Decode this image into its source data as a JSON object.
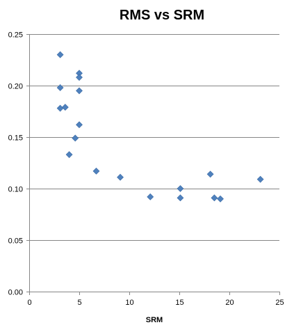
{
  "chart_data": {
    "type": "scatter",
    "title": "RMS vs SRM",
    "xlabel": "SRM",
    "ylabel": "",
    "xlim": [
      0,
      25
    ],
    "ylim": [
      0,
      0.25
    ],
    "xticks": [
      "0",
      "5",
      "10",
      "15",
      "20",
      "25"
    ],
    "yticks": [
      "0.00",
      "0.05",
      "0.10",
      "0.15",
      "0.20",
      "0.25"
    ],
    "grid": true,
    "legend": "none",
    "marker": "diamond",
    "color": "#4f81bd",
    "series": [
      {
        "points": [
          {
            "x": 3.1,
            "y": 0.23
          },
          {
            "x": 3.1,
            "y": 0.198
          },
          {
            "x": 3.1,
            "y": 0.178
          },
          {
            "x": 3.6,
            "y": 0.179
          },
          {
            "x": 4.0,
            "y": 0.133
          },
          {
            "x": 4.6,
            "y": 0.149
          },
          {
            "x": 5.0,
            "y": 0.212
          },
          {
            "x": 5.0,
            "y": 0.208
          },
          {
            "x": 5.0,
            "y": 0.195
          },
          {
            "x": 5.0,
            "y": 0.162
          },
          {
            "x": 6.7,
            "y": 0.117
          },
          {
            "x": 9.1,
            "y": 0.111
          },
          {
            "x": 12.1,
            "y": 0.092
          },
          {
            "x": 15.1,
            "y": 0.1
          },
          {
            "x": 15.1,
            "y": 0.091
          },
          {
            "x": 18.1,
            "y": 0.114
          },
          {
            "x": 18.5,
            "y": 0.091
          },
          {
            "x": 19.1,
            "y": 0.09
          },
          {
            "x": 23.1,
            "y": 0.109
          }
        ]
      }
    ]
  }
}
